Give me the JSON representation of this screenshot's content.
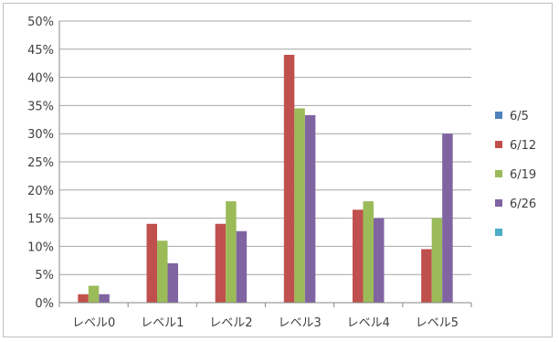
{
  "chart_data": {
    "type": "bar",
    "title": "",
    "xlabel": "",
    "ylabel": "",
    "categories": [
      "レベル0",
      "レベル1",
      "レベル2",
      "レベル3",
      "レベル4",
      "レベル5"
    ],
    "ylim": [
      0,
      50
    ],
    "yticks": [
      "0%",
      "5%",
      "10%",
      "15%",
      "20%",
      "25%",
      "30%",
      "35%",
      "40%",
      "45%",
      "50%"
    ],
    "grid": true,
    "legend_position": "right",
    "series": [
      {
        "name": "6/5",
        "color": "#4f81bd",
        "values": [
          null,
          null,
          null,
          null,
          null,
          null
        ]
      },
      {
        "name": "6/12",
        "color": "#c0504d",
        "values": [
          1.5,
          14,
          14,
          44,
          16.5,
          9.5
        ]
      },
      {
        "name": "6/19",
        "color": "#9bbb59",
        "values": [
          3,
          11,
          18,
          34.5,
          18,
          15
        ]
      },
      {
        "name": "6/26",
        "color": "#8064a2",
        "values": [
          1.5,
          7,
          12.7,
          33.3,
          15,
          30
        ]
      },
      {
        "name": "",
        "color": "#4bacc6",
        "values": [
          null,
          null,
          null,
          null,
          null,
          null
        ]
      }
    ]
  }
}
